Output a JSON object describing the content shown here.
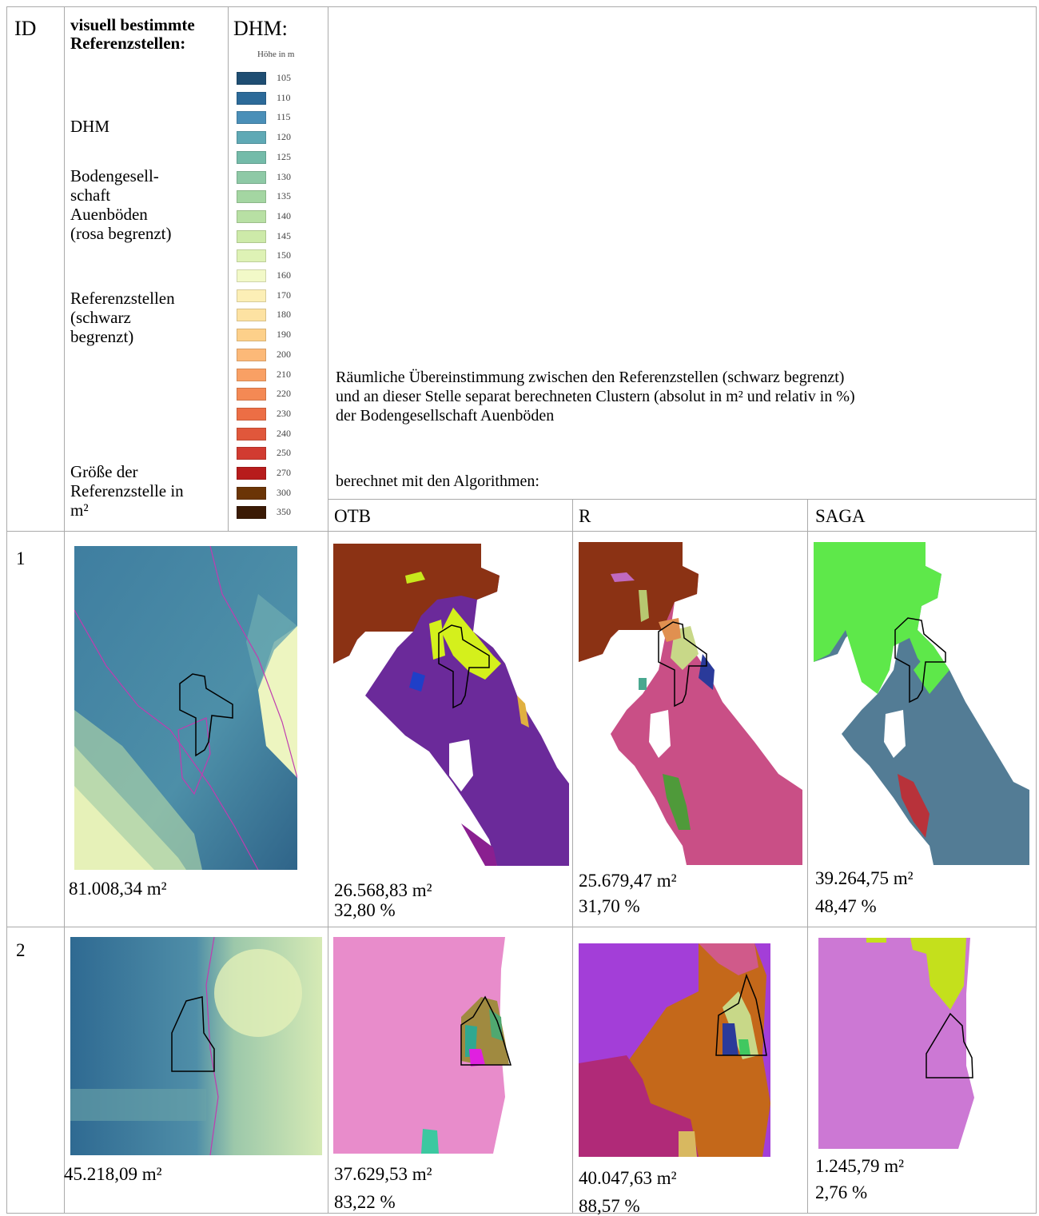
{
  "header": {
    "id": "ID",
    "reference_heading": "visuell bestimmte Referenzstellen:",
    "items": [
      "DHM",
      "Bodengesell-\nschaft\nAuenböden\n(rosa begrenzt)",
      "Referenzstellen\n(schwarz\nbegrenzt)",
      "Größe der\nReferenzstelle in\nm²"
    ],
    "dhm_heading": "DHM:",
    "legend_title": "Höhe in m",
    "legend": [
      {
        "label": "105",
        "color": "#1f4e73"
      },
      {
        "label": "110",
        "color": "#2c6a99"
      },
      {
        "label": "115",
        "color": "#4a8fb8"
      },
      {
        "label": "120",
        "color": "#5fa9b5"
      },
      {
        "label": "125",
        "color": "#74bba9"
      },
      {
        "label": "130",
        "color": "#8ec9a6"
      },
      {
        "label": "135",
        "color": "#a4d6a2"
      },
      {
        "label": "140",
        "color": "#b8e0a4"
      },
      {
        "label": "145",
        "color": "#cdeaa9"
      },
      {
        "label": "150",
        "color": "#def2b5"
      },
      {
        "label": "160",
        "color": "#f2f9c8"
      },
      {
        "label": "170",
        "color": "#fcefb6"
      },
      {
        "label": "180",
        "color": "#fde2a2"
      },
      {
        "label": "190",
        "color": "#fdd08a"
      },
      {
        "label": "200",
        "color": "#fcb978"
      },
      {
        "label": "210",
        "color": "#f9a064"
      },
      {
        "label": "220",
        "color": "#f48954"
      },
      {
        "label": "230",
        "color": "#ec6e45"
      },
      {
        "label": "240",
        "color": "#e0573b"
      },
      {
        "label": "250",
        "color": "#d13b31"
      },
      {
        "label": "270",
        "color": "#b71c1c"
      },
      {
        "label": "300",
        "color": "#6b3506"
      },
      {
        "label": "350",
        "color": "#3a1a05"
      }
    ],
    "description": "Räumliche Übereinstimmung zwischen den Referenzstellen (schwarz begrenzt)\nund an dieser Stelle separat berechneten Clustern (absolut in m² und relativ in %)\nder Bodengesellschaft Auenböden",
    "algorithms_intro": "berechnet mit den Algorithmen:",
    "algorithms": [
      "OTB",
      "R",
      "SAGA"
    ]
  },
  "rows": [
    {
      "id": "1",
      "size": "81.008,34 m²",
      "results": [
        {
          "area": "26.568,83 m²",
          "percent": "32,80 %"
        },
        {
          "area": "25.679,47 m²",
          "percent": "31,70 %"
        },
        {
          "area": "39.264,75 m²",
          "percent": "48,47 %"
        }
      ]
    },
    {
      "id": "2",
      "size": "45.218,09 m²",
      "results": [
        {
          "area": "37.629,53 m²",
          "percent": "83,22 %"
        },
        {
          "area": "40.047,63 m²",
          "percent": "88,57 %"
        },
        {
          "area": "1.245,79 m²",
          "percent": "2,76 %"
        }
      ]
    }
  ]
}
